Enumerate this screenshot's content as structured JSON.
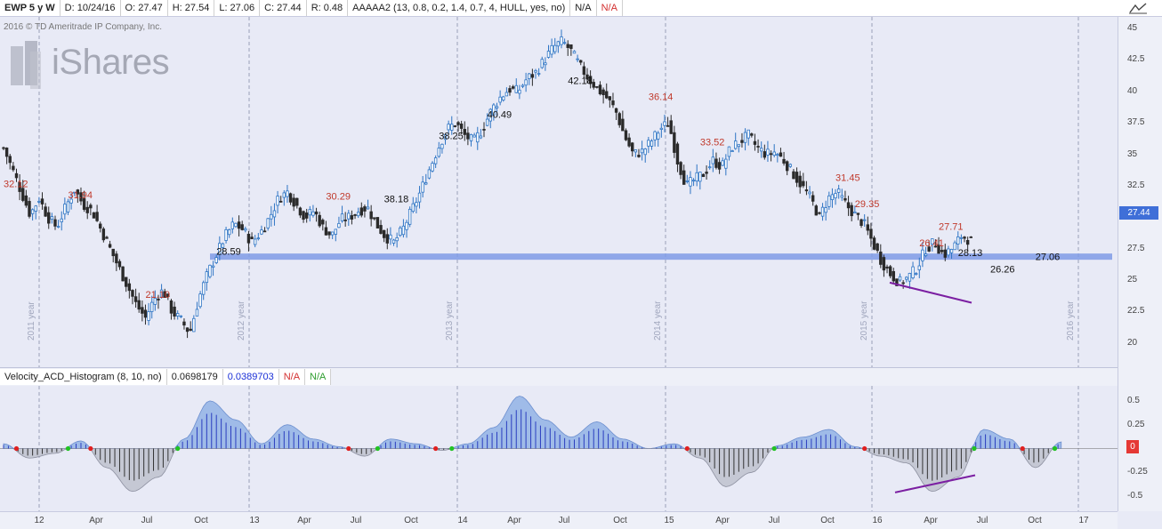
{
  "header": {
    "items": [
      {
        "key": "symbol",
        "text": "EWP 5 y W"
      },
      {
        "key": "date",
        "text": "D: 10/24/16"
      },
      {
        "key": "open",
        "text": "O: 27.47"
      },
      {
        "key": "high",
        "text": "H: 27.54"
      },
      {
        "key": "low",
        "text": "L: 27.06"
      },
      {
        "key": "close",
        "text": "C: 27.44"
      },
      {
        "key": "range",
        "text": "R: 0.48"
      },
      {
        "key": "study",
        "text": "AAAAA2 (13, 0.8, 0.2, 1.4, 0.7, 4, HULL, yes, no)"
      },
      {
        "key": "na1",
        "text": "N/A"
      },
      {
        "key": "na2",
        "text": "N/A"
      }
    ]
  },
  "copyright": "2016 © TD Ameritrade IP Company, Inc.",
  "logo_text": "iShares",
  "indicator_header": {
    "name": "Velocity_ACD_Histogram (8, 10, no)",
    "value1": "0.0698179",
    "value2": "0.0389703",
    "na1": "N/A",
    "na2": "N/A"
  },
  "price_tag": "27.44",
  "indicator_tag": "0",
  "chart_data": [
    {
      "type": "candlestick",
      "title": "EWP 5 y W",
      "ylim": [
        18.5,
        45.5
      ],
      "y_ticks": [
        "45",
        "42.5",
        "40",
        "37.5",
        "35",
        "32.5",
        "30",
        "27.5",
        "25",
        "22.5",
        "20"
      ],
      "support_level": 26.9,
      "year_labels": [
        "2011 year",
        "2012 year",
        "2013 year",
        "2014 year",
        "2015 year",
        "2016 year"
      ],
      "x_ticks": [
        "12",
        "Apr",
        "Jul",
        "Oct",
        "13",
        "Apr",
        "Jul",
        "Oct",
        "14",
        "Apr",
        "Jul",
        "Oct",
        "15",
        "Apr",
        "Jul",
        "Oct",
        "16",
        "Apr",
        "Jul",
        "Oct",
        "17"
      ],
      "close_path": [
        [
          0,
          35.5
        ],
        [
          2,
          33.8
        ],
        [
          4,
          32.0
        ],
        [
          6,
          30.2
        ],
        [
          8,
          31.5
        ],
        [
          10,
          30.0
        ],
        [
          12,
          29.2
        ],
        [
          14,
          30.8
        ],
        [
          16,
          32.2
        ],
        [
          18,
          31.0
        ],
        [
          20,
          30.5
        ],
        [
          22,
          29.0
        ],
        [
          24,
          27.5
        ],
        [
          26,
          26.0
        ],
        [
          28,
          24.5
        ],
        [
          30,
          23.0
        ],
        [
          32,
          22.0
        ],
        [
          34,
          23.5
        ],
        [
          36,
          24.2
        ],
        [
          38,
          22.5
        ],
        [
          40,
          21.8
        ],
        [
          42,
          20.8
        ],
        [
          44,
          23.5
        ],
        [
          46,
          25.5
        ],
        [
          48,
          27.0
        ],
        [
          50,
          28.5
        ],
        [
          52,
          29.5
        ],
        [
          54,
          29.0
        ],
        [
          56,
          28.0
        ],
        [
          58,
          28.8
        ],
        [
          60,
          30.0
        ],
        [
          62,
          31.5
        ],
        [
          64,
          32.0
        ],
        [
          66,
          31.0
        ],
        [
          68,
          30.0
        ],
        [
          70,
          30.5
        ],
        [
          72,
          29.2
        ],
        [
          74,
          28.5
        ],
        [
          76,
          29.8
        ],
        [
          78,
          30.0
        ],
        [
          80,
          30.5
        ],
        [
          82,
          30.8
        ],
        [
          84,
          29.5
        ],
        [
          86,
          28.5
        ],
        [
          88,
          28.0
        ],
        [
          90,
          29.0
        ],
        [
          92,
          30.5
        ],
        [
          94,
          32.0
        ],
        [
          96,
          33.8
        ],
        [
          98,
          35.5
        ],
        [
          100,
          37.0
        ],
        [
          102,
          37.5
        ],
        [
          104,
          36.5
        ],
        [
          106,
          36.0
        ],
        [
          108,
          37.0
        ],
        [
          110,
          38.5
        ],
        [
          112,
          39.5
        ],
        [
          114,
          40.2
        ],
        [
          116,
          40.0
        ],
        [
          118,
          41.0
        ],
        [
          120,
          41.5
        ],
        [
          122,
          42.5
        ],
        [
          124,
          43.5
        ],
        [
          126,
          44.0
        ],
        [
          128,
          43.2
        ],
        [
          130,
          42.0
        ],
        [
          132,
          41.0
        ],
        [
          134,
          40.2
        ],
        [
          136,
          39.5
        ],
        [
          138,
          38.5
        ],
        [
          140,
          36.5
        ],
        [
          142,
          35.0
        ],
        [
          144,
          35.2
        ],
        [
          146,
          36.0
        ],
        [
          148,
          37.0
        ],
        [
          150,
          37.5
        ],
        [
          152,
          34.5
        ],
        [
          154,
          32.5
        ],
        [
          156,
          33.0
        ],
        [
          158,
          33.5
        ],
        [
          160,
          34.5
        ],
        [
          162,
          34.0
        ],
        [
          164,
          35.5
        ],
        [
          166,
          36.0
        ],
        [
          168,
          36.5
        ],
        [
          170,
          35.5
        ],
        [
          172,
          35.0
        ],
        [
          174,
          35.2
        ],
        [
          176,
          34.5
        ],
        [
          178,
          33.5
        ],
        [
          180,
          32.5
        ],
        [
          182,
          31.5
        ],
        [
          184,
          30.0
        ],
        [
          186,
          31.5
        ],
        [
          188,
          32.0
        ],
        [
          190,
          31.0
        ],
        [
          192,
          30.2
        ],
        [
          194,
          29.5
        ],
        [
          196,
          28.0
        ],
        [
          198,
          26.5
        ],
        [
          200,
          25.5
        ],
        [
          202,
          24.8
        ],
        [
          204,
          25.2
        ],
        [
          206,
          26.0
        ],
        [
          208,
          27.5
        ],
        [
          210,
          28.0
        ],
        [
          212,
          27.0
        ],
        [
          214,
          27.5
        ],
        [
          216,
          28.5
        ],
        [
          218,
          28.2
        ],
        [
          220,
          27.0
        ],
        [
          222,
          26.5
        ],
        [
          224,
          23.5
        ],
        [
          226,
          24.5
        ],
        [
          228,
          26.0
        ],
        [
          230,
          26.5
        ],
        [
          232,
          27.0
        ],
        [
          234,
          27.2
        ],
        [
          236,
          27.5
        ],
        [
          238,
          27.0
        ],
        [
          240,
          27.44
        ]
      ],
      "annotations": [
        {
          "text": "32.12",
          "x": 0,
          "y": 32.4,
          "color": "red"
        },
        {
          "text": "31.94",
          "x": 20,
          "y": 31.5,
          "color": "red"
        },
        {
          "text": "21.10",
          "x": 44,
          "y": 23.6,
          "color": "red"
        },
        {
          "text": "28.59",
          "x": 66,
          "y": 27.0,
          "color": "black"
        },
        {
          "text": "30.29",
          "x": 100,
          "y": 31.4,
          "color": "red"
        },
        {
          "text": "38.18",
          "x": 118,
          "y": 31.2,
          "color": "black"
        },
        {
          "text": "38.25",
          "x": 135,
          "y": 36.2,
          "color": "black"
        },
        {
          "text": "40.49",
          "x": 150,
          "y": 37.9,
          "color": "black"
        },
        {
          "text": "42.18",
          "x": 175,
          "y": 40.6,
          "color": "black"
        },
        {
          "text": "36.14",
          "x": 200,
          "y": 39.3,
          "color": "red"
        },
        {
          "text": "33.52",
          "x": 216,
          "y": 35.7,
          "color": "red"
        },
        {
          "text": "31.45",
          "x": 258,
          "y": 32.9,
          "color": "red"
        },
        {
          "text": "29.35",
          "x": 264,
          "y": 30.8,
          "color": "red"
        },
        {
          "text": "27.71",
          "x": 290,
          "y": 29.0,
          "color": "red"
        },
        {
          "text": "26.41",
          "x": 284,
          "y": 27.7,
          "color": "red"
        },
        {
          "text": "28.13",
          "x": 296,
          "y": 26.9,
          "color": "black"
        },
        {
          "text": "26.26",
          "x": 306,
          "y": 25.6,
          "color": "black"
        },
        {
          "text": "27.06",
          "x": 320,
          "y": 26.6,
          "color": "black"
        }
      ]
    },
    {
      "type": "histogram",
      "title": "Velocity_ACD_Histogram (8, 10, no)",
      "ylim": [
        -0.62,
        0.62
      ],
      "y_ticks": [
        "0.5",
        "0.25",
        "0",
        "-0.25",
        "-0.5"
      ],
      "series": [
        {
          "name": "Velocity_ACD_Histogram",
          "x": [
            0,
            8,
            16,
            24,
            32,
            40,
            48,
            56,
            64,
            72,
            80,
            88,
            96,
            104,
            112,
            120,
            128,
            136,
            144,
            152,
            160,
            168,
            176,
            184,
            192,
            200,
            208,
            216,
            224,
            232,
            240,
            248,
            256,
            264,
            272,
            280,
            288,
            296,
            304,
            312,
            320,
            328
          ],
          "values": [
            0.05,
            -0.1,
            -0.05,
            0.08,
            -0.2,
            -0.45,
            -0.3,
            0.1,
            0.5,
            0.3,
            0.05,
            0.25,
            0.1,
            0.02,
            -0.08,
            0.1,
            0.05,
            -0.02,
            0.05,
            0.22,
            0.55,
            0.3,
            0.12,
            0.28,
            0.1,
            0.0,
            0.05,
            -0.1,
            -0.4,
            -0.25,
            0.03,
            0.12,
            0.2,
            0.02,
            -0.08,
            -0.15,
            -0.45,
            -0.3,
            0.2,
            0.1,
            -0.2,
            0.07
          ]
        }
      ]
    }
  ]
}
